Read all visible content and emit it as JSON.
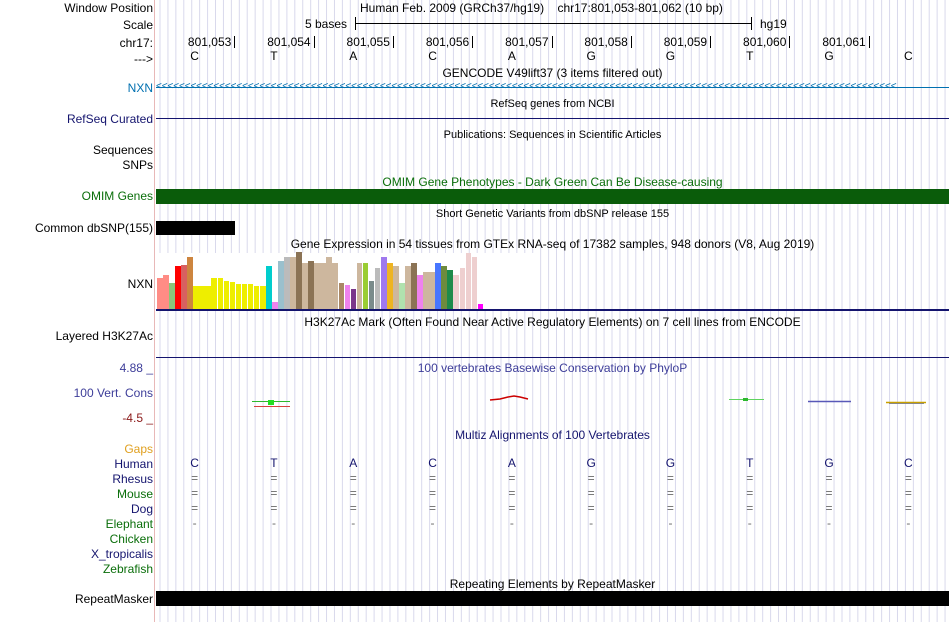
{
  "header": {
    "window_position_label": "Window Position",
    "scale_label": "Scale",
    "chrom_label": "chr17:",
    "strand_label": "--->",
    "assembly_title": "Human Feb. 2009 (GRCh37/hg19)",
    "region": "chr17:801,053-801,062 (10 bp)",
    "scale_text": "5 bases",
    "db_label": "hg19",
    "positions": [
      "801,053",
      "801,054",
      "801,055",
      "801,056",
      "801,057",
      "801,058",
      "801,059",
      "801,060",
      "801,061"
    ],
    "bases": [
      "C",
      "T",
      "A",
      "C",
      "A",
      "G",
      "G",
      "T",
      "G",
      "C"
    ]
  },
  "tracks": {
    "gencode": {
      "title": "GENCODE V49lift37 (3 items filtered out)",
      "gene": "NXN",
      "strand_glyphs": "<<<<<<<<<<<<<<<<<<<<<<<<<<<<<<<<<<<<<<<<<<<<<<<<<<<<<<<<<<<<<<<<<<<<<<<<<<<<<<<<<<<<<<<<<<<<<<<<<<<<<<<<<<<<<<<<<<<<<<<<<<<<<<<<<"
    },
    "refseq": {
      "title": "RefSeq genes from NCBI",
      "label": "RefSeq Curated"
    },
    "publications": {
      "title": "Publications: Sequences in Scientific Articles",
      "label_sequences": "Sequences",
      "label_snps": "SNPs"
    },
    "omim": {
      "title": "OMIM Gene Phenotypes - Dark Green Can Be Disease-causing",
      "label": "OMIM Genes",
      "color": "#0a5c0a"
    },
    "dbsnp": {
      "title": "Short Genetic Variants from dbSNP release 155",
      "label": "Common dbSNP(155)"
    },
    "gtex": {
      "title": "Gene Expression in 54 tissues from GTEx RNA-seq of 17382 samples, 948 donors (V8, Aug 2019)",
      "label": "NXN",
      "levels": [
        0.55,
        0.6,
        0.45,
        0.75,
        0.78,
        0.92,
        0.4,
        0.4,
        0.4,
        0.55,
        0.55,
        0.5,
        0.48,
        0.43,
        0.43,
        0.43,
        0.4,
        0.4,
        0.75,
        0.12,
        0.85,
        0.92,
        0.92,
        1.0,
        0.8,
        0.85,
        0.8,
        0.8,
        0.92,
        0.8,
        0.45,
        0.42,
        0.35,
        0.8,
        0.8,
        0.5,
        0.72,
        0.92,
        0.8,
        0.75,
        0.45,
        0.75,
        0.8,
        0.6,
        0.65,
        0.65,
        0.8,
        0.75,
        0.68,
        0.6,
        0.72,
        0.98,
        0.92,
        0.08
      ],
      "colors": [
        "#ff8c85",
        "#ff8c85",
        "#8bc57a",
        "#ff0000",
        "#d86060",
        "#cd853f",
        "#eeee00",
        "#eeee00",
        "#eeee00",
        "#eeee00",
        "#eeee00",
        "#eeee00",
        "#eeee00",
        "#eeee00",
        "#eeee00",
        "#eeee00",
        "#eeee00",
        "#eeee00",
        "#00cdcd",
        "#ee82ee",
        "#9ac0cd",
        "#bbbbbb",
        "#cdb79e",
        "#8b7355",
        "#cdb79e",
        "#8b7355",
        "#cdb79e",
        "#cdb79e",
        "#cdb79e",
        "#cdb79e",
        "#aa8866",
        "#ee82ee",
        "#7a378b",
        "#cdb79e",
        "#9acd32",
        "#7a8b8b",
        "#bbbbbb",
        "#9f79ee",
        "#eeb422",
        "#cdb79e",
        "#b0e2ae",
        "#cdb79e",
        "#8b7355",
        "#ee82ee",
        "#cdb79e",
        "#cdb79e",
        "#4876ff",
        "#6e8b3d",
        "#1e8b4b",
        "#eecfcf",
        "#eecfcf",
        "#eecfcf",
        "#eecfcf",
        "#ff00ff"
      ]
    },
    "h3k27ac": {
      "title": "H3K27Ac Mark (Often Found Near Active Regulatory Elements) on 7 cell lines from ENCODE",
      "label": "Layered H3K27Ac"
    },
    "phylop": {
      "title": "100 vertebrates Basewise Conservation by PhyloP",
      "label": "100 Vert. Cons",
      "max_label": "4.88 _",
      "min_label": "-4.5 _",
      "color": "#3d3d99"
    },
    "multiz": {
      "title": "Multiz Alignments of 100 Vertebrates",
      "gaps_label": "Gaps",
      "species": [
        "Human",
        "Rhesus",
        "Mouse",
        "Dog",
        "Elephant",
        "Chicken",
        "X_tropicalis",
        "Zebrafish"
      ],
      "rows": {
        "Rhesus": [
          "=",
          "=",
          "=",
          "=",
          "=",
          "=",
          "=",
          "=",
          "=",
          "="
        ],
        "Mouse": [
          "=",
          "=",
          "=",
          "=",
          "=",
          "=",
          "=",
          "=",
          "=",
          "="
        ],
        "Dog": [
          "=",
          "=",
          "=",
          "=",
          "=",
          "=",
          "=",
          "=",
          "=",
          "="
        ],
        "Elephant": [
          "-",
          "-",
          "-",
          "-",
          "-",
          "-",
          "-",
          "-",
          "-",
          "-"
        ]
      }
    },
    "repeatmasker": {
      "title": "Repeating Elements by RepeatMasker",
      "label": "RepeatMasker"
    }
  },
  "colors": {
    "link_blue": "#0070b0",
    "navy": "#14146e",
    "green": "#0a6e0a",
    "orange": "#e0a020",
    "cons_red": "#8b1a1a"
  }
}
